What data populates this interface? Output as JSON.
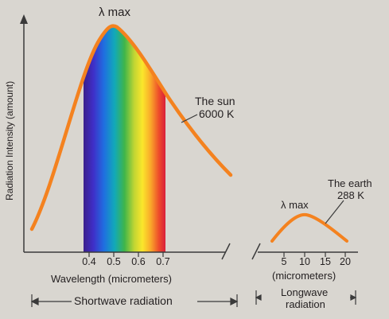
{
  "labels": {
    "lambda_max_sun": "λ max",
    "sun_name": "The sun",
    "sun_temp": "6000 K",
    "earth_name": "The earth",
    "earth_temp": "288 K",
    "lambda_max_earth": "λ max",
    "y_axis": "Radiation Intensity (amount)",
    "x_axis_short": "Wavelength (micrometers)",
    "x_axis_long": "(micrometers)",
    "shortwave_band": "Shortwave radiation",
    "longwave_band_line1": "Longwave",
    "longwave_band_line2": "radiation"
  },
  "short_ticks": [
    "0.4",
    "0.5",
    "0.6",
    "0.7"
  ],
  "long_ticks": [
    "5",
    "10",
    "15",
    "20"
  ],
  "colors": {
    "curve": "#f4821f",
    "axis": "#3a3a3a",
    "background": "#d9d6d0"
  }
}
